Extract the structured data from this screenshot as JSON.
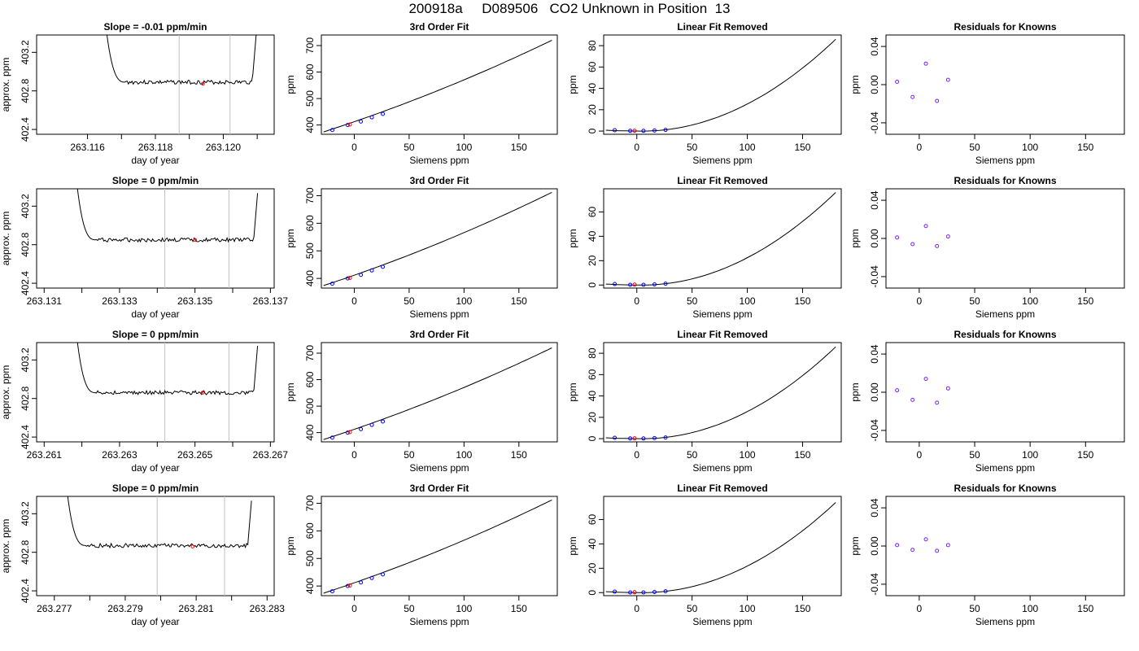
{
  "page_title": "200918a     D089506   CO2 Unknown in Position  13",
  "chart_data": [
    {
      "type": "line",
      "row": 0,
      "col": 0,
      "title": "Slope =  -0.01  ppm/min",
      "xlabel": "day of year",
      "ylabel": "approx. ppm",
      "xlim": [
        263.1145,
        263.1215
      ],
      "ylim": [
        402.35,
        403.38
      ],
      "xticks": [
        263.116,
        263.118,
        263.12
      ],
      "xtick_labels": [
        "263.116",
        "263.118",
        "263.120"
      ],
      "xtick_minor": [
        263.117,
        263.119,
        263.121
      ],
      "yticks": [
        402.4,
        402.8,
        403.2
      ],
      "ytick_labels": [
        "402.4",
        "402.8",
        "403.2"
      ],
      "vlines": [
        263.1187,
        263.1202
      ],
      "x_start": 263.1167,
      "x_end": 263.1209,
      "level": 402.89,
      "marker": {
        "x": 263.1194,
        "y": 402.875
      }
    },
    {
      "type": "line",
      "row": 0,
      "col": 1,
      "title": "3rd Order Fit",
      "xlabel": "Siemens ppm",
      "ylabel": "ppm",
      "xlim": [
        -30,
        185
      ],
      "ylim": [
        365,
        740
      ],
      "xticks": [
        0,
        50,
        100,
        150
      ],
      "xtick_labels": [
        "0",
        "50",
        "100",
        "150"
      ],
      "yticks": [
        400,
        500,
        600,
        700
      ],
      "ytick_labels": [
        "400",
        "500",
        "600",
        "700"
      ],
      "curve": {
        "x0": -28,
        "x1": 180,
        "y0": 374,
        "y1": 720
      },
      "points": {
        "x": [
          -20,
          -6,
          6,
          16,
          26
        ],
        "y": [
          381,
          400,
          413,
          429,
          442
        ]
      },
      "unknown": {
        "x": -4,
        "y": 402
      }
    },
    {
      "type": "line",
      "row": 0,
      "col": 2,
      "title": "Linear Fit Removed",
      "xlabel": "Siemens ppm",
      "ylabel": "ppm",
      "xlim": [
        -30,
        185
      ],
      "ylim": [
        -3,
        90
      ],
      "xticks": [
        0,
        50,
        100,
        150
      ],
      "xtick_labels": [
        "0",
        "50",
        "100",
        "150"
      ],
      "yticks": [
        0,
        20,
        40,
        60,
        80
      ],
      "ytick_labels": [
        "0",
        "20",
        "40",
        "60",
        "80"
      ],
      "curve": {
        "x0": -28,
        "x1": 180,
        "peak": 86
      },
      "points": {
        "x": [
          -20,
          -6,
          6,
          16,
          26
        ],
        "y": [
          0.8,
          0.2,
          0.2,
          0.5,
          1.1
        ]
      },
      "unknown": {
        "x": -2,
        "y": 0.3
      }
    },
    {
      "type": "scatter",
      "row": 0,
      "col": 3,
      "title": "Residuals for Knowns",
      "xlabel": "Siemens ppm",
      "ylabel": "ppm",
      "xlim": [
        -30,
        185
      ],
      "ylim": [
        -0.052,
        0.052
      ],
      "xticks": [
        0,
        50,
        100,
        150
      ],
      "xtick_labels": [
        "0",
        "50",
        "100",
        "150"
      ],
      "yticks": [
        -0.04,
        0,
        0.04
      ],
      "ytick_labels": [
        "-0.04",
        "0.00",
        "0.04"
      ],
      "points": {
        "x": [
          -20,
          -6,
          6,
          16,
          26
        ],
        "y": [
          0.003,
          -0.013,
          0.022,
          -0.017,
          0.005
        ]
      }
    },
    {
      "type": "line",
      "row": 1,
      "col": 0,
      "title": "Slope =  0  ppm/min",
      "xlabel": "day of year",
      "ylabel": "approx. ppm",
      "xlim": [
        263.1308,
        263.1371
      ],
      "ylim": [
        402.35,
        403.38
      ],
      "xticks": [
        263.131,
        263.133,
        263.135,
        263.137
      ],
      "xtick_labels": [
        "263.131",
        "263.133",
        "263.135",
        "263.137"
      ],
      "xtick_minor": [
        263.132,
        263.134,
        263.136
      ],
      "yticks": [
        402.4,
        402.8,
        403.2
      ],
      "ytick_labels": [
        "402.4",
        "402.8",
        "403.2"
      ],
      "vlines": [
        263.1342,
        263.1359
      ],
      "x_start": 263.132,
      "x_end": 263.1366,
      "level": 402.85,
      "marker": {
        "x": 263.135,
        "y": 402.85
      }
    },
    {
      "type": "line",
      "row": 1,
      "col": 1,
      "title": "3rd Order Fit",
      "xlabel": "Siemens ppm",
      "ylabel": "ppm",
      "xlim": [
        -30,
        185
      ],
      "ylim": [
        365,
        725
      ],
      "xticks": [
        0,
        50,
        100,
        150
      ],
      "xtick_labels": [
        "0",
        "50",
        "100",
        "150"
      ],
      "yticks": [
        400,
        500,
        600,
        700
      ],
      "ytick_labels": [
        "400",
        "500",
        "600",
        "700"
      ],
      "curve": {
        "x0": -28,
        "x1": 180,
        "y0": 374,
        "y1": 712
      },
      "points": {
        "x": [
          -20,
          -6,
          6,
          16,
          26
        ],
        "y": [
          381,
          400,
          413,
          429,
          442
        ]
      },
      "unknown": {
        "x": -4,
        "y": 402
      }
    },
    {
      "type": "line",
      "row": 1,
      "col": 2,
      "title": "Linear Fit Removed",
      "xlabel": "Siemens ppm",
      "ylabel": "ppm",
      "xlim": [
        -30,
        185
      ],
      "ylim": [
        -2.5,
        79
      ],
      "xticks": [
        0,
        50,
        100,
        150
      ],
      "xtick_labels": [
        "0",
        "50",
        "100",
        "150"
      ],
      "yticks": [
        0,
        20,
        40,
        60
      ],
      "ytick_labels": [
        "0",
        "20",
        "40",
        "60"
      ],
      "curve": {
        "x0": -28,
        "x1": 180,
        "peak": 76
      },
      "points": {
        "x": [
          -20,
          -6,
          6,
          16,
          26
        ],
        "y": [
          0.8,
          0.2,
          0.2,
          0.5,
          1.1
        ]
      },
      "unknown": {
        "x": -2,
        "y": 0.3
      }
    },
    {
      "type": "scatter",
      "row": 1,
      "col": 3,
      "title": "Residuals for Knowns",
      "xlabel": "Siemens ppm",
      "ylabel": "ppm",
      "xlim": [
        -30,
        185
      ],
      "ylim": [
        -0.052,
        0.052
      ],
      "xticks": [
        0,
        50,
        100,
        150
      ],
      "xtick_labels": [
        "0",
        "50",
        "100",
        "150"
      ],
      "yticks": [
        -0.04,
        0,
        0.04
      ],
      "ytick_labels": [
        "-0.04",
        "0.00",
        "0.04"
      ],
      "points": {
        "x": [
          -20,
          -6,
          6,
          16,
          26
        ],
        "y": [
          0.001,
          -0.006,
          0.013,
          -0.008,
          0.002
        ]
      }
    },
    {
      "type": "line",
      "row": 2,
      "col": 0,
      "title": "Slope =  0  ppm/min",
      "xlabel": "day of year",
      "ylabel": "approx. ppm",
      "xlim": [
        263.2608,
        263.2671
      ],
      "ylim": [
        402.35,
        403.38
      ],
      "xticks": [
        263.261,
        263.263,
        263.265,
        263.267
      ],
      "xtick_labels": [
        "263.261",
        "263.263",
        "263.265",
        "263.267"
      ],
      "xtick_minor": [
        263.262,
        263.264,
        263.266
      ],
      "yticks": [
        402.4,
        402.8,
        403.2
      ],
      "ytick_labels": [
        "402.4",
        "402.8",
        "403.2"
      ],
      "vlines": [
        263.2642,
        263.2659
      ],
      "x_start": 263.262,
      "x_end": 263.2666,
      "level": 402.86,
      "marker": {
        "x": 263.2652,
        "y": 402.86
      }
    },
    {
      "type": "line",
      "row": 2,
      "col": 1,
      "title": "3rd Order Fit",
      "xlabel": "Siemens ppm",
      "ylabel": "ppm",
      "xlim": [
        -30,
        185
      ],
      "ylim": [
        365,
        740
      ],
      "xticks": [
        0,
        50,
        100,
        150
      ],
      "xtick_labels": [
        "0",
        "50",
        "100",
        "150"
      ],
      "yticks": [
        400,
        500,
        600,
        700
      ],
      "ytick_labels": [
        "400",
        "500",
        "600",
        "700"
      ],
      "curve": {
        "x0": -28,
        "x1": 180,
        "y0": 374,
        "y1": 720
      },
      "points": {
        "x": [
          -20,
          -6,
          6,
          16,
          26
        ],
        "y": [
          381,
          400,
          413,
          429,
          442
        ]
      },
      "unknown": {
        "x": -4,
        "y": 402
      }
    },
    {
      "type": "line",
      "row": 2,
      "col": 2,
      "title": "Linear Fit Removed",
      "xlabel": "Siemens ppm",
      "ylabel": "ppm",
      "xlim": [
        -30,
        185
      ],
      "ylim": [
        -3,
        90
      ],
      "xticks": [
        0,
        50,
        100,
        150
      ],
      "xtick_labels": [
        "0",
        "50",
        "100",
        "150"
      ],
      "yticks": [
        0,
        20,
        40,
        60,
        80
      ],
      "ytick_labels": [
        "0",
        "20",
        "40",
        "60",
        "80"
      ],
      "curve": {
        "x0": -28,
        "x1": 180,
        "peak": 86
      },
      "points": {
        "x": [
          -20,
          -6,
          6,
          16,
          26
        ],
        "y": [
          0.8,
          0.2,
          0.2,
          0.5,
          1.1
        ]
      },
      "unknown": {
        "x": -2,
        "y": 0.3
      }
    },
    {
      "type": "scatter",
      "row": 2,
      "col": 3,
      "title": "Residuals for Knowns",
      "xlabel": "Siemens ppm",
      "ylabel": "ppm",
      "xlim": [
        -30,
        185
      ],
      "ylim": [
        -0.052,
        0.052
      ],
      "xticks": [
        0,
        50,
        100,
        150
      ],
      "xtick_labels": [
        "0",
        "50",
        "100",
        "150"
      ],
      "yticks": [
        -0.04,
        0,
        0.04
      ],
      "ytick_labels": [
        "-0.04",
        "0.00",
        "0.04"
      ],
      "points": {
        "x": [
          -20,
          -6,
          6,
          16,
          26
        ],
        "y": [
          0.002,
          -0.008,
          0.014,
          -0.011,
          0.004
        ]
      }
    },
    {
      "type": "line",
      "row": 3,
      "col": 0,
      "title": "Slope =  0  ppm/min",
      "xlabel": "day of year",
      "ylabel": "approx. ppm",
      "xlim": [
        263.2765,
        263.2832
      ],
      "ylim": [
        402.35,
        403.38
      ],
      "xticks": [
        263.277,
        263.279,
        263.281,
        263.283
      ],
      "xtick_labels": [
        "263.277",
        "263.279",
        "263.281",
        "263.283"
      ],
      "xtick_minor": [
        263.278,
        263.28,
        263.282
      ],
      "yticks": [
        402.4,
        402.8,
        403.2
      ],
      "ytick_labels": [
        "402.4",
        "402.8",
        "403.2"
      ],
      "vlines": [
        263.2799,
        263.2818
      ],
      "x_start": 263.2775,
      "x_end": 263.2825,
      "level": 402.87,
      "marker": {
        "x": 263.2809,
        "y": 402.86
      }
    },
    {
      "type": "line",
      "row": 3,
      "col": 1,
      "title": "3rd Order Fit",
      "xlabel": "Siemens ppm",
      "ylabel": "ppm",
      "xlim": [
        -30,
        185
      ],
      "ylim": [
        365,
        725
      ],
      "xticks": [
        0,
        50,
        100,
        150
      ],
      "xtick_labels": [
        "0",
        "50",
        "100",
        "150"
      ],
      "yticks": [
        400,
        500,
        600,
        700
      ],
      "ytick_labels": [
        "400",
        "500",
        "600",
        "700"
      ],
      "curve": {
        "x0": -28,
        "x1": 180,
        "y0": 374,
        "y1": 712
      },
      "points": {
        "x": [
          -20,
          -6,
          6,
          16,
          26
        ],
        "y": [
          381,
          400,
          413,
          429,
          442
        ]
      },
      "unknown": {
        "x": -4,
        "y": 402
      }
    },
    {
      "type": "line",
      "row": 3,
      "col": 2,
      "title": "Linear Fit Removed",
      "xlabel": "Siemens ppm",
      "ylabel": "ppm",
      "xlim": [
        -30,
        185
      ],
      "ylim": [
        -2.5,
        79
      ],
      "xticks": [
        0,
        50,
        100,
        150
      ],
      "xtick_labels": [
        "0",
        "50",
        "100",
        "150"
      ],
      "yticks": [
        0,
        20,
        40,
        60
      ],
      "ytick_labels": [
        "0",
        "20",
        "40",
        "60"
      ],
      "curve": {
        "x0": -28,
        "x1": 180,
        "peak": 74
      },
      "points": {
        "x": [
          -20,
          -6,
          6,
          16,
          26
        ],
        "y": [
          0.8,
          0.2,
          0.2,
          0.5,
          1.1
        ]
      },
      "unknown": {
        "x": -2,
        "y": 0.3
      }
    },
    {
      "type": "scatter",
      "row": 3,
      "col": 3,
      "title": "Residuals for Knowns",
      "xlabel": "Siemens ppm",
      "ylabel": "ppm",
      "xlim": [
        -30,
        185
      ],
      "ylim": [
        -0.052,
        0.052
      ],
      "xticks": [
        0,
        50,
        100,
        150
      ],
      "xtick_labels": [
        "0",
        "50",
        "100",
        "150"
      ],
      "yticks": [
        -0.04,
        0,
        0.04
      ],
      "ytick_labels": [
        "-0.04",
        "0.00",
        "0.04"
      ],
      "points": {
        "x": [
          -20,
          -6,
          6,
          16,
          26
        ],
        "y": [
          0.001,
          -0.004,
          0.007,
          -0.005,
          0.001
        ]
      }
    }
  ]
}
